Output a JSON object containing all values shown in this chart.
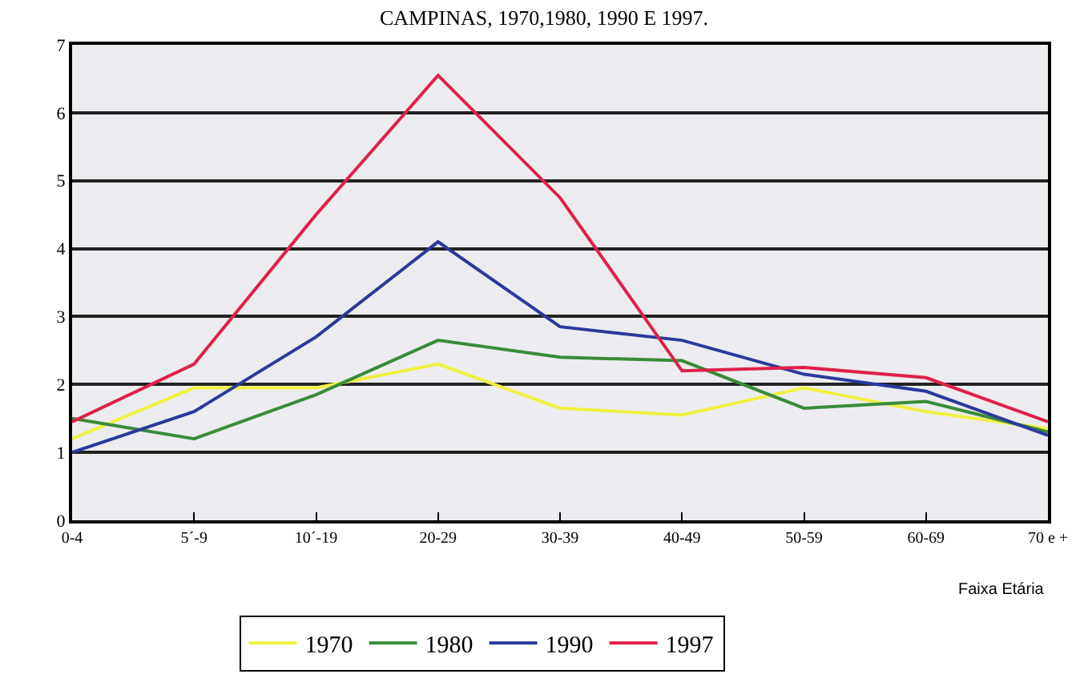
{
  "chart_data": {
    "type": "line",
    "title": "CAMPINAS, 1970,1980, 1990 E 1997.",
    "xlabel": "Faixa Etária",
    "categories": [
      "0-4",
      "5´-9",
      "10´-19",
      "20-29",
      "30-39",
      "40-49",
      "50-59",
      "60-69",
      "70 e +"
    ],
    "series": [
      {
        "name": "1970",
        "color": "#f0f040",
        "values": [
          1.2,
          1.95,
          1.95,
          2.3,
          1.65,
          1.55,
          1.95,
          1.6,
          1.35
        ]
      },
      {
        "name": "1980",
        "color": "#3a8a3a",
        "values": [
          1.5,
          1.2,
          1.85,
          2.65,
          2.4,
          2.35,
          1.65,
          1.75,
          1.3
        ]
      },
      {
        "name": "1990",
        "color": "#2a3a9a",
        "values": [
          1.0,
          1.6,
          2.7,
          4.1,
          2.85,
          2.65,
          2.15,
          1.9,
          1.25
        ]
      },
      {
        "name": "1997",
        "color": "#e0204a",
        "values": [
          1.45,
          2.3,
          4.5,
          6.55,
          4.75,
          2.2,
          2.25,
          2.1,
          1.45
        ]
      }
    ],
    "ylim": [
      0,
      7
    ],
    "yticks": [
      0,
      1,
      2,
      3,
      4,
      5,
      6,
      7
    ],
    "grid": "y",
    "legend": "bottom",
    "marker": "none",
    "line_style": "solid"
  }
}
